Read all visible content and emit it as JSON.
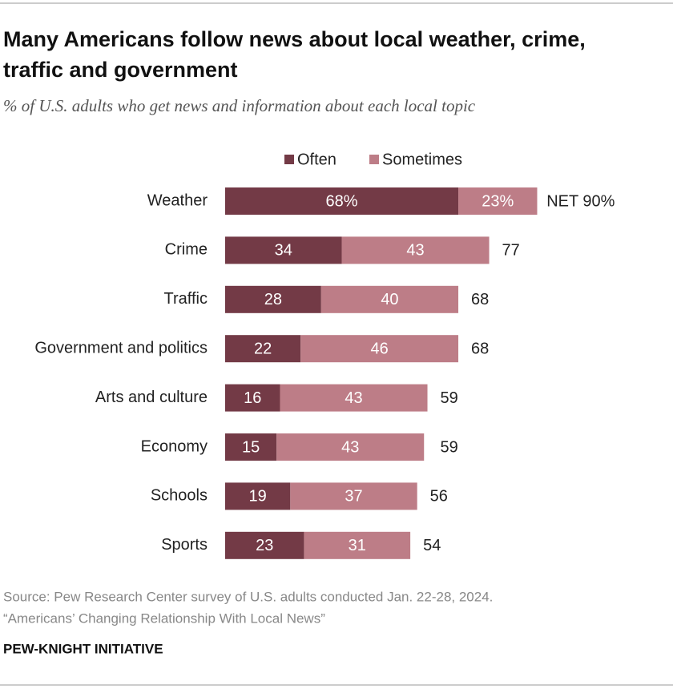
{
  "chart_data": {
    "type": "stacked-bar",
    "title": "Many Americans follow news about local weather, crime, traffic and government",
    "subtitle": "% of U.S. adults who get news and information about each local topic",
    "categories": [
      "Weather",
      "Crime",
      "Traffic",
      "Government and politics",
      "Arts and culture",
      "Economy",
      "Schools",
      "Sports"
    ],
    "series": [
      {
        "name": "Often",
        "color": "#733a46",
        "values": [
          68,
          34,
          28,
          22,
          16,
          15,
          19,
          23
        ],
        "value_labels": [
          "68%",
          "34",
          "28",
          "22",
          "16",
          "15",
          "19",
          "23"
        ]
      },
      {
        "name": "Sometimes",
        "color": "#bd7d87",
        "values": [
          23,
          43,
          40,
          46,
          43,
          43,
          37,
          31
        ],
        "value_labels": [
          "23%",
          "43",
          "40",
          "46",
          "43",
          "43",
          "37",
          "31"
        ]
      }
    ],
    "totals": {
      "values": [
        90,
        77,
        68,
        68,
        59,
        59,
        56,
        54
      ],
      "value_labels": [
        "NET 90%",
        "77",
        "68",
        "68",
        "59",
        "59",
        "56",
        "54"
      ]
    },
    "xlim": [
      0,
      100
    ],
    "source": [
      "Source: Pew Research Center survey of U.S. adults conducted Jan. 22-28, 2024.",
      "“Americans’ Changing Relationship With Local News”"
    ],
    "credit": "PEW-KNIGHT INITIATIVE"
  }
}
